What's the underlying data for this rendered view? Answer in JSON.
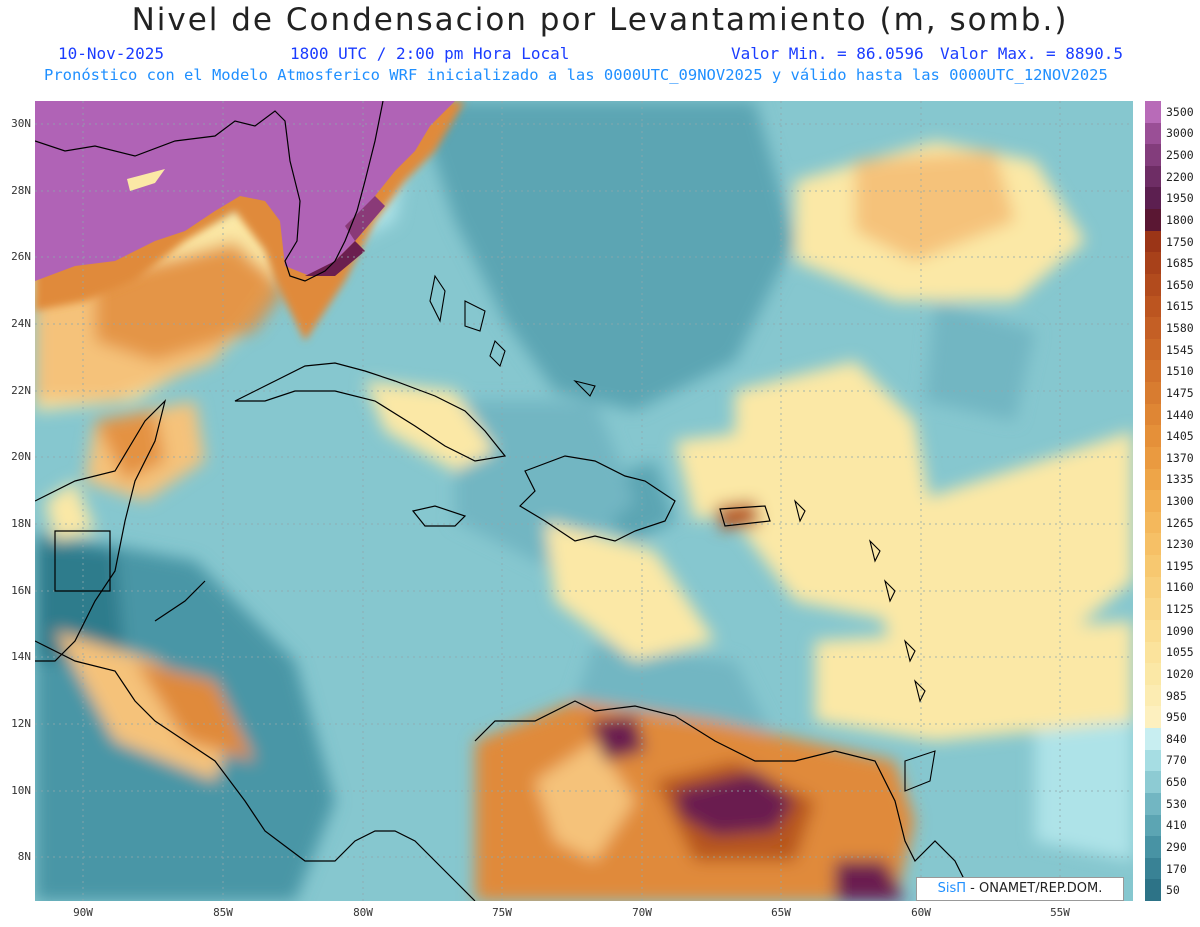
{
  "title": "Nivel de Condensacion por Levantamiento (m, somb.)",
  "subtitle": {
    "date": "10-Nov-2025",
    "time": "1800 UTC / 2:00 pm Hora Local",
    "min": "Valor Min. = 86.0596",
    "max": "Valor Max. = 8890.5",
    "model": "Pronóstico con el Modelo Atmosferico WRF inicializado a las 0000UTC_09NOV2025 y válido hasta las  0000UTC_12NOV2025"
  },
  "map": {
    "lat_range": [
      6.7,
      30.7
    ],
    "lon_range": [
      -92.2,
      -52.5
    ],
    "lat_ticks": [
      "30N",
      "28N",
      "26N",
      "24N",
      "22N",
      "20N",
      "18N",
      "16N",
      "14N",
      "12N",
      "10N",
      "8N"
    ],
    "lon_ticks": [
      "90W",
      "85W",
      "80W",
      "75W",
      "70W",
      "65W",
      "60W",
      "55W"
    ],
    "grid": "dotted",
    "colors": {
      "very_low": "#2f7c8c",
      "low": "#57a6b3",
      "mid_low": "#86c7cf",
      "mid": "#aee3e8",
      "pale_yellow": "#fbe8a6",
      "light_orange": "#f5c27a",
      "orange": "#e08a3a",
      "dark_orange": "#b8571c",
      "purple_dark": "#6b1f4f",
      "purple": "#b063b6",
      "coast": "#000000"
    }
  },
  "colorbar": {
    "labels": [
      "3500",
      "3000",
      "2500",
      "2200",
      "1950",
      "1800",
      "1750",
      "1685",
      "1650",
      "1615",
      "1580",
      "1545",
      "1510",
      "1475",
      "1440",
      "1405",
      "1370",
      "1335",
      "1300",
      "1265",
      "1230",
      "1195",
      "1160",
      "1125",
      "1090",
      "1055",
      "1020",
      "985",
      "950",
      "840",
      "770",
      "650",
      "530",
      "410",
      "290",
      "170",
      "50"
    ],
    "colors": [
      "#b86bb8",
      "#9a4f96",
      "#833d7c",
      "#6e2d65",
      "#5c1f50",
      "#5a1733",
      "#9b3517",
      "#a8411a",
      "#b24b1d",
      "#bc5520",
      "#c45f25",
      "#cb6928",
      "#d2722c",
      "#d87c30",
      "#df8634",
      "#e59039",
      "#ea9a40",
      "#ee a548",
      "#f2af52",
      "#f4b85c",
      "#f6c066",
      "#f7c870",
      "#f8cf7b",
      "#f9d686",
      "#fadd91",
      "#fbe39c",
      "#fbe8a6",
      "#fcecb2",
      "#fdf0bf",
      "#c8eef1",
      "#a6dde3",
      "#8dcbd3",
      "#72b6c2",
      "#5ca5b3",
      "#4893a4",
      "#398295",
      "#2d7387"
    ]
  },
  "logo": {
    "brand": "SisΠ",
    "rest": "- ONAMET/REP.DOM."
  }
}
